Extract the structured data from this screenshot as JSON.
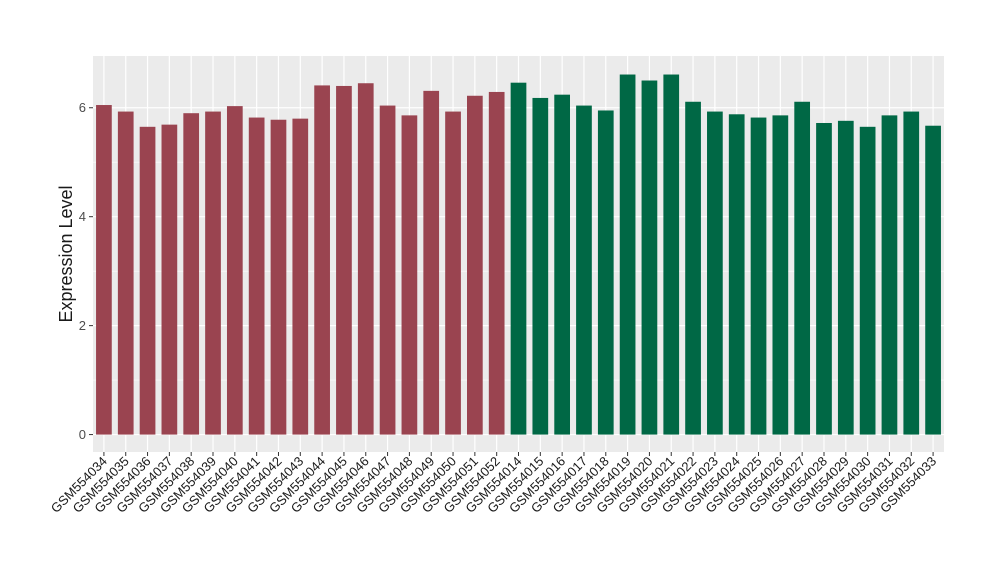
{
  "colors": {
    "group_a": "#9A4450",
    "group_b": "#006845",
    "panel_bg": "#EBEBEB",
    "grid": "#FFFFFF",
    "text": "#1A1A1A"
  },
  "chart_data": {
    "type": "bar",
    "title": "",
    "xlabel": "",
    "ylabel": "Expression Level",
    "ylim": [
      -0.32,
      6.95
    ],
    "yticks": [
      0,
      2,
      4,
      6
    ],
    "grid": true,
    "legend": "none",
    "categories": [
      "GSM554034",
      "GSM554035",
      "GSM554036",
      "GSM554037",
      "GSM554038",
      "GSM554039",
      "GSM554040",
      "GSM554041",
      "GSM554042",
      "GSM554043",
      "GSM554044",
      "GSM554045",
      "GSM554046",
      "GSM554047",
      "GSM554048",
      "GSM554049",
      "GSM554050",
      "GSM554051",
      "GSM554052",
      "GSM554014",
      "GSM554015",
      "GSM554016",
      "GSM554017",
      "GSM554018",
      "GSM554019",
      "GSM554020",
      "GSM554021",
      "GSM554022",
      "GSM554023",
      "GSM554024",
      "GSM554025",
      "GSM554026",
      "GSM554027",
      "GSM554028",
      "GSM554029",
      "GSM554030",
      "GSM554031",
      "GSM554032",
      "GSM554033"
    ],
    "values": [
      6.05,
      5.93,
      5.65,
      5.69,
      5.9,
      5.93,
      6.03,
      5.82,
      5.78,
      5.8,
      6.41,
      6.4,
      6.45,
      6.04,
      5.86,
      6.31,
      5.93,
      6.22,
      6.29,
      6.46,
      6.18,
      6.24,
      6.04,
      5.95,
      6.61,
      6.5,
      6.61,
      6.11,
      5.93,
      5.88,
      5.82,
      5.86,
      6.11,
      5.72,
      5.76,
      5.65,
      5.86,
      5.93,
      5.67
    ],
    "groups": [
      "a",
      "a",
      "a",
      "a",
      "a",
      "a",
      "a",
      "a",
      "a",
      "a",
      "a",
      "a",
      "a",
      "a",
      "a",
      "a",
      "a",
      "a",
      "a",
      "b",
      "b",
      "b",
      "b",
      "b",
      "b",
      "b",
      "b",
      "b",
      "b",
      "b",
      "b",
      "b",
      "b",
      "b",
      "b",
      "b",
      "b",
      "b",
      "b"
    ]
  }
}
